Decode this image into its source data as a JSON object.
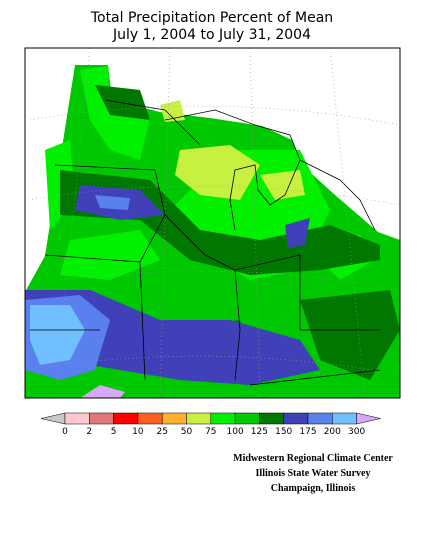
{
  "header": {
    "title": "Total Precipitation Percent of Mean",
    "subtitle": "July 1, 2004 to July 31, 2004"
  },
  "legend": {
    "ticks": [
      0,
      2,
      5,
      10,
      25,
      50,
      75,
      100,
      125,
      150,
      175,
      200,
      300
    ],
    "colors": [
      "#ffc8d0",
      "#e07878",
      "#ff0000",
      "#ff6020",
      "#ffb030",
      "#c8f040",
      "#00f000",
      "#00c800",
      "#007800",
      "#4040b8",
      "#5a80f0",
      "#70c0ff"
    ],
    "below_color": "#c8c8c8",
    "above_color": "#d8a8f8"
  },
  "credits": [
    "Midwestern Regional Climate Center",
    "Illinois State Water Survey",
    "Champaign, Illinois"
  ]
}
